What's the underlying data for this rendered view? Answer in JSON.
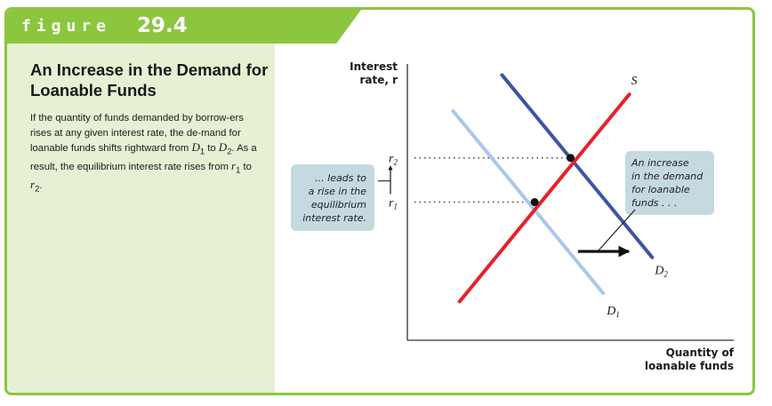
{
  "figure": {
    "label": "figure",
    "number": "29.4"
  },
  "side": {
    "title": "An Increase in the Demand for Loanable Funds",
    "body": {
      "t1": "If the quantity of funds demanded by borrow-ers rises at any given interest rate, the de-mand for loanable funds shifts rightward from ",
      "d1": "D",
      "d1_sub": "1",
      "t2": " to ",
      "d2": "D",
      "d2_sub": "2",
      "t3": ". As a result, the equilibrium interest rate rises from ",
      "r1": "r",
      "r1_sub": "1",
      "t4": " to ",
      "r2": "r",
      "r2_sub": "2",
      "t5": "."
    }
  },
  "chart_data": {
    "type": "line",
    "title": "",
    "xlabel_line1": "Quantity of",
    "xlabel_line2": "loanable funds",
    "ylabel_line1": "Interest",
    "ylabel_line2": "rate, r",
    "xlim": [
      0,
      100
    ],
    "ylim": [
      0,
      100
    ],
    "series": [
      {
        "name": "S",
        "name_sub": "",
        "color": "#e8202a",
        "points": [
          [
            16,
            14
          ],
          [
            68,
            89
          ]
        ]
      },
      {
        "name": "D",
        "name_sub": "1",
        "color": "#a9c8ec",
        "points": [
          [
            14,
            83
          ],
          [
            60,
            17
          ]
        ]
      },
      {
        "name": "D",
        "name_sub": "2",
        "color": "#3d55a3",
        "points": [
          [
            29,
            96
          ],
          [
            75,
            30
          ]
        ]
      }
    ],
    "equilibria": [
      {
        "label": "r",
        "label_sub": "1",
        "x": 39,
        "y": 50
      },
      {
        "label": "r",
        "label_sub": "2",
        "x": 50,
        "y": 66
      }
    ],
    "annotations": {
      "rise": [
        "... leads to",
        "a rise in the",
        "equilibrium",
        "interest rate."
      ],
      "shift": [
        "An increase",
        "in the demand",
        "for loanable",
        "funds . . ."
      ]
    },
    "colors": {
      "green": "#8cc63f",
      "callout": "#c5d9e0"
    }
  }
}
